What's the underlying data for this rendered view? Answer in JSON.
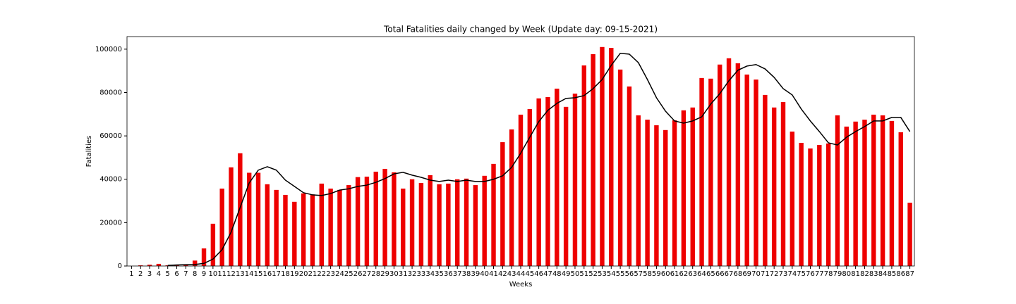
{
  "chart_data": {
    "type": "bar",
    "title": "Total Fatalities daily changed by Week (Update day: 09-15-2021)",
    "x_label": "Weeks",
    "y_label": "Fatalities",
    "categories": [
      "1",
      "2",
      "3",
      "4",
      "5",
      "6",
      "7",
      "8",
      "9",
      "10",
      "11",
      "12",
      "13",
      "14",
      "15",
      "16",
      "17",
      "18",
      "19",
      "20",
      "21",
      "22",
      "23",
      "24",
      "25",
      "26",
      "27",
      "28",
      "29",
      "30",
      "31",
      "32",
      "33",
      "34",
      "35",
      "36",
      "37",
      "38",
      "39",
      "40",
      "41",
      "42",
      "43",
      "44",
      "45",
      "46",
      "47",
      "48",
      "49",
      "50",
      "51",
      "52",
      "53",
      "54",
      "55",
      "56",
      "57",
      "58",
      "59",
      "60",
      "61",
      "62",
      "63",
      "64",
      "65",
      "66",
      "67",
      "68",
      "69",
      "70",
      "71",
      "72",
      "73",
      "74",
      "75",
      "76",
      "77",
      "78",
      "79",
      "80",
      "81",
      "82",
      "83",
      "84",
      "85",
      "86",
      "87"
    ],
    "series": [
      {
        "type": "bar",
        "color": "#ee0000",
        "values": [
          0,
          300,
          600,
          1000,
          300,
          400,
          600,
          2500,
          8100,
          19500,
          35700,
          45500,
          52000,
          43000,
          43000,
          37700,
          35100,
          32800,
          29600,
          33500,
          33000,
          38000,
          35700,
          35100,
          37300,
          41000,
          41200,
          43500,
          44800,
          43200,
          35700,
          40000,
          38300,
          41900,
          37700,
          38000,
          40000,
          40300,
          37300,
          41600,
          47100,
          57100,
          63000,
          69800,
          72400,
          77300,
          77900,
          81800,
          73400,
          79500,
          92500,
          97700,
          101000,
          100600,
          90600,
          82800,
          69500,
          67500,
          64900,
          62700,
          67200,
          71800,
          73100,
          86700,
          86400,
          92900,
          95800,
          93500,
          88300,
          86000,
          78900,
          73100,
          75600,
          62000,
          56800,
          54200,
          55800,
          56500,
          69500,
          64300,
          66600,
          67500,
          69800,
          69500,
          66900,
          61700,
          29200
        ]
      },
      {
        "type": "line",
        "color": "#000000",
        "values": [
          null,
          null,
          null,
          null,
          300,
          500,
          600,
          700,
          1200,
          3200,
          7500,
          15600,
          27000,
          38300,
          44200,
          45800,
          44200,
          39600,
          36700,
          33800,
          32800,
          32500,
          33400,
          35000,
          35600,
          36700,
          37300,
          38600,
          40300,
          42500,
          43200,
          41900,
          40900,
          39600,
          39000,
          39600,
          39000,
          39600,
          39000,
          39000,
          40000,
          41600,
          45500,
          52000,
          59400,
          66600,
          71800,
          75000,
          77300,
          77600,
          78600,
          81800,
          86000,
          92500,
          98100,
          97700,
          93800,
          86000,
          77600,
          71400,
          66900,
          65900,
          66900,
          68800,
          74700,
          79500,
          85400,
          90300,
          92200,
          92900,
          90900,
          87000,
          81800,
          78900,
          72400,
          66900,
          62000,
          56800,
          55800,
          59400,
          62000,
          64300,
          66900,
          66900,
          68500,
          68500,
          62000
        ]
      }
    ],
    "ylim": [
      0,
      105800
    ],
    "yticks": [
      0,
      20000,
      40000,
      60000,
      80000,
      100000
    ],
    "grid": false
  }
}
